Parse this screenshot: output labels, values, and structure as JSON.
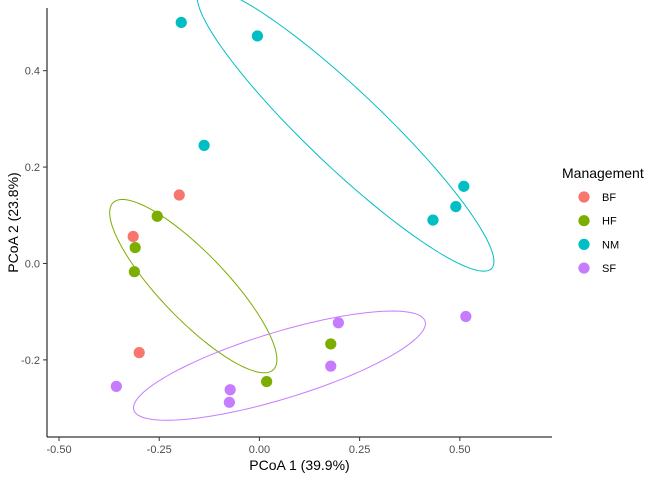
{
  "chart_data": {
    "type": "scatter",
    "xlabel": "PCoA 1 (39.9%)",
    "ylabel": "PCoA 2 (23.8%)",
    "xlim": [
      -0.53,
      0.73
    ],
    "ylim": [
      -0.36,
      0.53
    ],
    "xticks": [
      -0.5,
      -0.25,
      0.0,
      0.25,
      0.5
    ],
    "xtick_labels": [
      "-0.50",
      "-0.25",
      "0.00",
      "0.25",
      "0.50"
    ],
    "yticks": [
      -0.2,
      0.0,
      0.2,
      0.4
    ],
    "ytick_labels": [
      "-0.2",
      "0.0",
      "0.2",
      "0.4"
    ],
    "grid": false,
    "legend": {
      "title": "Management",
      "position": "right"
    },
    "series": [
      {
        "name": "BF",
        "color": "#F8766D",
        "points": [
          [
            -0.2,
            0.142
          ],
          [
            -0.315,
            0.056
          ],
          [
            -0.3,
            -0.185
          ]
        ]
      },
      {
        "name": "HF",
        "color": "#7CAE00",
        "points": [
          [
            -0.255,
            0.098
          ],
          [
            -0.31,
            0.033
          ],
          [
            -0.312,
            -0.017
          ],
          [
            0.178,
            -0.167
          ],
          [
            0.018,
            -0.245
          ]
        ]
      },
      {
        "name": "NM",
        "color": "#00BFC4",
        "points": [
          [
            -0.195,
            0.5
          ],
          [
            -0.005,
            0.472
          ],
          [
            -0.138,
            0.245
          ],
          [
            0.51,
            0.16
          ],
          [
            0.49,
            0.118
          ],
          [
            0.433,
            0.09
          ]
        ]
      },
      {
        "name": "SF",
        "color": "#C77CFF",
        "points": [
          [
            0.197,
            -0.123
          ],
          [
            0.515,
            -0.11
          ],
          [
            0.178,
            -0.213
          ],
          [
            -0.357,
            -0.255
          ],
          [
            -0.073,
            -0.262
          ],
          [
            -0.075,
            -0.288
          ]
        ]
      }
    ],
    "ellipses": [
      {
        "group": "HF",
        "color": "#7CAE00",
        "center": [
          -0.165,
          -0.047
        ],
        "rx": 0.265,
        "ry": 0.075,
        "angle_deg": -40
      },
      {
        "group": "NM",
        "color": "#00BFC4",
        "center": [
          0.215,
          0.278
        ],
        "rx": 0.465,
        "ry": 0.085,
        "angle_deg": -38
      },
      {
        "group": "SF",
        "color": "#C77CFF",
        "center": [
          0.05,
          -0.212
        ],
        "rx": 0.375,
        "ry": 0.07,
        "angle_deg": 14
      }
    ]
  }
}
